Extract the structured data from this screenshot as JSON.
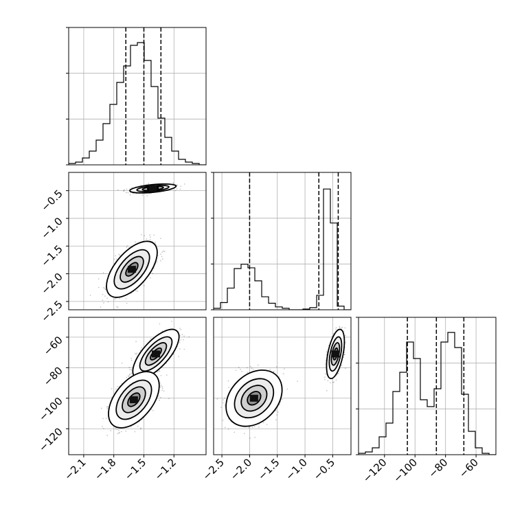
{
  "chart_data": {
    "type": "corner",
    "parameters": [
      {
        "id": "p1",
        "range": [
          -2.25,
          -0.88
        ],
        "ticks": [
          -2.1,
          -1.8,
          -1.5,
          -1.2
        ],
        "tick_labels": [
          "−2.1",
          "−1.8",
          "−1.5",
          "−1.2"
        ]
      },
      {
        "id": "p2",
        "range": [
          -2.65,
          -0.17
        ],
        "ticks": [
          -2.5,
          -2.0,
          -1.5,
          -1.0,
          -0.5
        ],
        "tick_labels": [
          "−2.5",
          "−2.0",
          "−1.5",
          "−1.0",
          "−0.5"
        ]
      },
      {
        "id": "p3",
        "range": [
          -137,
          -47
        ],
        "ticks": [
          -120,
          -100,
          -80,
          -60
        ],
        "tick_labels": [
          "−120",
          "−100",
          "−80",
          "−60"
        ]
      }
    ],
    "quantiles": {
      "p1": [
        -1.68,
        -1.5,
        -1.33
      ],
      "p2": [
        -2.0,
        -0.75,
        -0.4
      ],
      "p3": [
        -105,
        -86,
        -68
      ]
    },
    "histograms": {
      "p1": {
        "edges_start": -2.25,
        "bin_width": 0.06849,
        "counts": [
          1,
          2,
          5,
          10,
          18,
          30,
          44,
          60,
          72,
          87,
          89,
          76,
          57,
          34,
          20,
          10,
          4,
          2,
          1,
          0
        ],
        "max": 100
      },
      "p2": {
        "edges_start": -2.65,
        "bin_width": 0.124,
        "counts": [
          2,
          10,
          30,
          57,
          63,
          58,
          40,
          18,
          9,
          4,
          2,
          0,
          0,
          1,
          3,
          20,
          167,
          120,
          5,
          0
        ],
        "max": 190
      },
      "p3": {
        "edges_start": -137,
        "bin_width": 4.5,
        "counts": [
          1,
          2,
          5,
          13,
          23,
          46,
          60,
          82,
          70,
          40,
          35,
          48,
          82,
          89,
          78,
          44,
          17,
          5,
          1,
          0
        ],
        "max": 100
      }
    },
    "modes_2d": {
      "p1_vs_p2": [
        {
          "center": [
            -1.41,
            -0.46
          ],
          "sd": [
            0.1,
            0.035
          ],
          "rho": 0.5,
          "weight": 0.55
        },
        {
          "center": [
            -1.62,
            -1.92
          ],
          "sd": [
            0.11,
            0.22
          ],
          "rho": 0.6,
          "weight": 0.45
        }
      ],
      "p2_vs_p3": [
        {
          "center": [
            -0.45,
            -71
          ],
          "sd": [
            0.07,
            7
          ],
          "rho": 0.5,
          "weight": 0.5
        },
        {
          "center": [
            -1.92,
            -100
          ],
          "sd": [
            0.22,
            8
          ],
          "rho": 0.3,
          "weight": 0.5
        }
      ],
      "p1_vs_p3": [
        {
          "center": [
            -1.38,
            -71
          ],
          "sd": [
            0.1,
            7
          ],
          "rho": 0.7,
          "weight": 0.52
        },
        {
          "center": [
            -1.6,
            -101
          ],
          "sd": [
            0.11,
            8
          ],
          "rho": 0.5,
          "weight": 0.48
        }
      ]
    },
    "grid": true,
    "colors": {
      "line": "#000000",
      "grid": "#b0b0b0",
      "points": "#000000"
    }
  }
}
